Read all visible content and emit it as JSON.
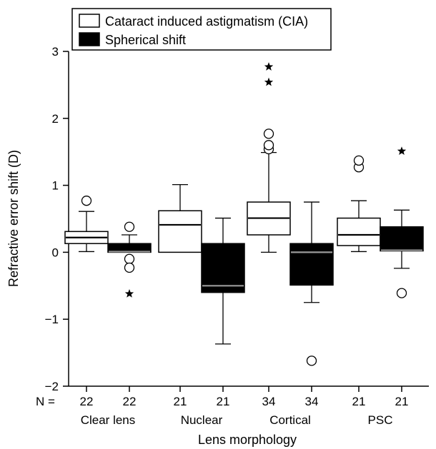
{
  "chart_data": {
    "type": "box",
    "title": "",
    "xlabel": "Lens morphology",
    "ylabel": "Refractive error shift (D)",
    "ylim": [
      -2,
      3
    ],
    "yticks": [
      -2,
      -1,
      0,
      1,
      2,
      3
    ],
    "ytick_labels": [
      "−2",
      "−1",
      "0",
      "1",
      "2",
      "3"
    ],
    "grid": false,
    "legend_position": "top-left",
    "n_prefix": "N =",
    "categories": [
      "Clear lens",
      "Nuclear",
      "Cortical",
      "PSC"
    ],
    "series": [
      {
        "name": "Cataract induced astigmatism (CIA)",
        "fill": "#ffffff",
        "median_color": "#000000",
        "n": [
          22,
          21,
          34,
          21
        ],
        "boxes": [
          {
            "whisker_low": 0.01,
            "q1": 0.13,
            "median": 0.22,
            "q3": 0.31,
            "whisker_high": 0.61,
            "outliers": [
              0.77
            ],
            "extremes": []
          },
          {
            "whisker_low": 0.0,
            "q1": 0.0,
            "median": 0.41,
            "q3": 0.62,
            "whisker_high": 1.01,
            "outliers": [],
            "extremes": []
          },
          {
            "whisker_low": 0.0,
            "q1": 0.26,
            "median": 0.51,
            "q3": 0.75,
            "whisker_high": 1.49,
            "outliers": [
              1.54,
              1.6,
              1.77
            ],
            "extremes": [
              2.54,
              2.77
            ]
          },
          {
            "whisker_low": 0.01,
            "q1": 0.1,
            "median": 0.26,
            "q3": 0.51,
            "whisker_high": 0.77,
            "outliers": [
              1.27,
              1.37
            ],
            "extremes": []
          }
        ]
      },
      {
        "name": "Spherical shift",
        "fill": "#000000",
        "median_color": "#9a9a9a",
        "n": [
          22,
          21,
          34,
          21
        ],
        "boxes": [
          {
            "whisker_low": 0.0,
            "q1": 0.0,
            "median": 0.01,
            "q3": 0.13,
            "whisker_high": 0.26,
            "outliers": [
              -0.1,
              -0.23,
              0.38
            ],
            "extremes": [
              -0.62
            ]
          },
          {
            "whisker_low": -1.37,
            "q1": -0.6,
            "median": -0.5,
            "q3": 0.13,
            "whisker_high": 0.51,
            "outliers": [],
            "extremes": []
          },
          {
            "whisker_low": -0.75,
            "q1": -0.49,
            "median": 0.0,
            "q3": 0.13,
            "whisker_high": 0.75,
            "outliers": [
              -1.62
            ],
            "extremes": []
          },
          {
            "whisker_low": -0.24,
            "q1": 0.02,
            "median": 0.03,
            "q3": 0.38,
            "whisker_high": 0.63,
            "outliers": [
              -0.61
            ],
            "extremes": [
              1.51
            ]
          }
        ]
      }
    ]
  }
}
